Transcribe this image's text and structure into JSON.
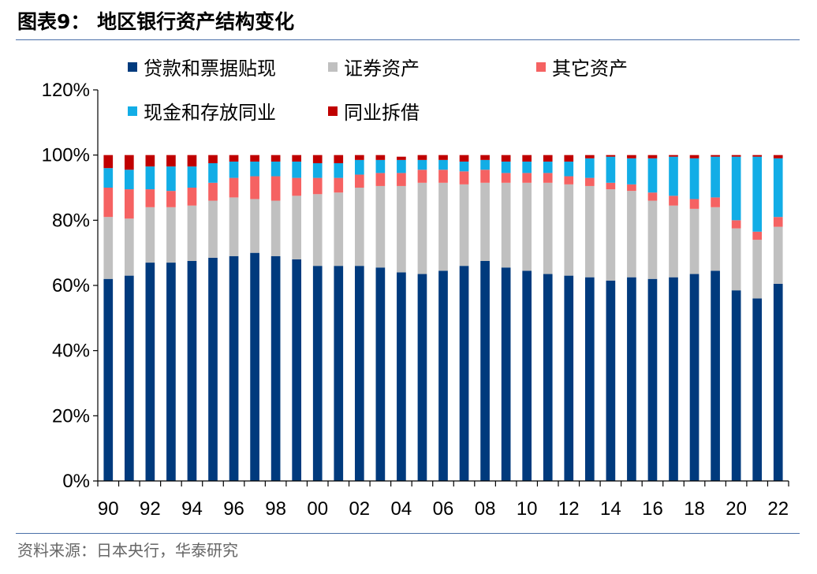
{
  "title": "图表9： 地区银行资产结构变化",
  "source": "资料来源：日本央行，华泰研究",
  "chart_data": {
    "type": "bar",
    "stacked": true,
    "categories": [
      "90",
      "91",
      "92",
      "93",
      "94",
      "95",
      "96",
      "97",
      "98",
      "99",
      "00",
      "01",
      "02",
      "03",
      "04",
      "05",
      "06",
      "07",
      "08",
      "09",
      "10",
      "11",
      "12",
      "13",
      "14",
      "15",
      "16",
      "17",
      "18",
      "19",
      "20",
      "21",
      "22"
    ],
    "x_tick_labels": [
      "90",
      "92",
      "94",
      "96",
      "98",
      "00",
      "02",
      "04",
      "06",
      "08",
      "10",
      "12",
      "14",
      "16",
      "18",
      "20",
      "22"
    ],
    "y_ticks": [
      "0%",
      "20%",
      "40%",
      "60%",
      "80%",
      "100%",
      "120%"
    ],
    "ylim": [
      0,
      120
    ],
    "legend_placement": "top",
    "series": [
      {
        "name": "贷款和票据贴现",
        "color": "#003a7d",
        "values": [
          62,
          63,
          67,
          67,
          67.5,
          68.5,
          69,
          70,
          69,
          68,
          66,
          66,
          66,
          65.5,
          64,
          63.5,
          64.5,
          66,
          67.5,
          65.5,
          64.5,
          63.5,
          63,
          62.5,
          61.5,
          62.5,
          62,
          62.5,
          63.5,
          64.5,
          58.5,
          56,
          60.5
        ]
      },
      {
        "name": "证券资产",
        "color": "#c0c0c0",
        "values": [
          19,
          17.5,
          17,
          17,
          17,
          17.5,
          18,
          16.5,
          17,
          19.5,
          22,
          22.5,
          24,
          25,
          26.5,
          28,
          27,
          25,
          24,
          26,
          27,
          28,
          28,
          28,
          28,
          26.5,
          24,
          22,
          20,
          19.5,
          19,
          18,
          17.5
        ]
      },
      {
        "name": "其它资产",
        "color": "#f56262",
        "values": [
          9,
          9,
          5.5,
          5,
          5.5,
          5.5,
          6,
          7,
          7.5,
          5.5,
          5,
          4.5,
          4,
          4,
          4,
          4,
          4,
          4,
          4,
          3,
          3,
          3,
          2.5,
          2.5,
          2,
          2,
          2.5,
          3,
          3,
          3,
          2.5,
          2.5,
          3
        ]
      },
      {
        "name": "现金和存放同业",
        "color": "#12ade6",
        "values": [
          6,
          6,
          7,
          7.5,
          6.5,
          6,
          5,
          4.5,
          4.5,
          5,
          4.5,
          4.5,
          4.5,
          4,
          4,
          3,
          3,
          3,
          3,
          3.5,
          3.5,
          3.5,
          4.5,
          6,
          8,
          8,
          10.5,
          12,
          12.5,
          12.5,
          19.5,
          23,
          18
        ]
      },
      {
        "name": "同业拆借",
        "color": "#c00000",
        "values": [
          4,
          4.5,
          3.5,
          3.5,
          3.5,
          2.5,
          2,
          2,
          2,
          2,
          2.5,
          2.5,
          1.5,
          1.5,
          1,
          1.5,
          1.5,
          2,
          1.5,
          2,
          2,
          2,
          2,
          1,
          0.5,
          1,
          1,
          0.5,
          1,
          0.5,
          0.5,
          0.5,
          1
        ]
      }
    ]
  }
}
